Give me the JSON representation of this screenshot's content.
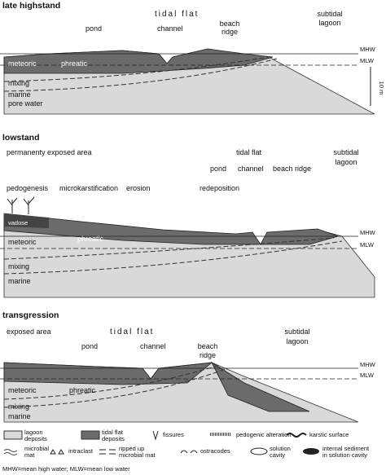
{
  "panels": [
    {
      "title": "late highstand",
      "labels": {
        "tidal_flat": "tidal flat",
        "pond": "pond",
        "channel": "channel",
        "beach_ridge": [
          "beach",
          "ridge"
        ],
        "subtidal_lagoon": [
          "subtidal",
          "lagoon"
        ],
        "mhw": "MHW",
        "mlw": "MLW",
        "scale": "10 m",
        "meteoric": "meteoric",
        "phreatic": "phreatic",
        "mixing": "mixing",
        "marine": "marine",
        "pore_water": "pore water"
      }
    },
    {
      "title": "lowstand",
      "labels": {
        "exposed": "permanenty exposed area",
        "tidal_flat": "tidal flat",
        "subtidal_lagoon": [
          "subtidal",
          "lagoon"
        ],
        "pond": "pond",
        "channel": "channel",
        "beach_ridge": "beach ridge",
        "pedogenesis": "pedogenesis",
        "microkarstification": "microkarstification",
        "erosion": "erosion",
        "redeposition": "redeposition",
        "vadose": "vadose",
        "meteoric": "meteoric",
        "phreatic": "phreatic",
        "mixing": "mixing",
        "marine": "marine",
        "mhw": "MHW",
        "mlw": "MLW"
      }
    },
    {
      "title": "transgression",
      "labels": {
        "exposed": "exposed area",
        "tidal_flat": "tidal flat",
        "pond": "pond",
        "channel": "channel",
        "beach_ridge": [
          "beach",
          "ridge"
        ],
        "subtidal_lagoon": [
          "subtidal",
          "lagoon"
        ],
        "mhw": "MHW",
        "mlw": "MLW",
        "meteoric": "meteoric",
        "phreatic": "phreatic",
        "mixing": "mixing",
        "marine": "marine"
      }
    }
  ],
  "legend": [
    [
      "lagoon",
      "deposits"
    ],
    [
      "tidal flat",
      "deposits"
    ],
    [
      "fissures"
    ],
    [
      "pedogenic alteration"
    ],
    [
      "karstic surface"
    ],
    [
      "microbial",
      "mat"
    ],
    [
      "intraclast"
    ],
    [
      "ripped up",
      "microbial mat"
    ],
    [
      "ostracodes"
    ],
    [
      "solution",
      "cavity"
    ],
    [
      "internal sediment",
      "in solution cavity"
    ]
  ],
  "footer": "MHW=mean high water; MLW=mean low water"
}
